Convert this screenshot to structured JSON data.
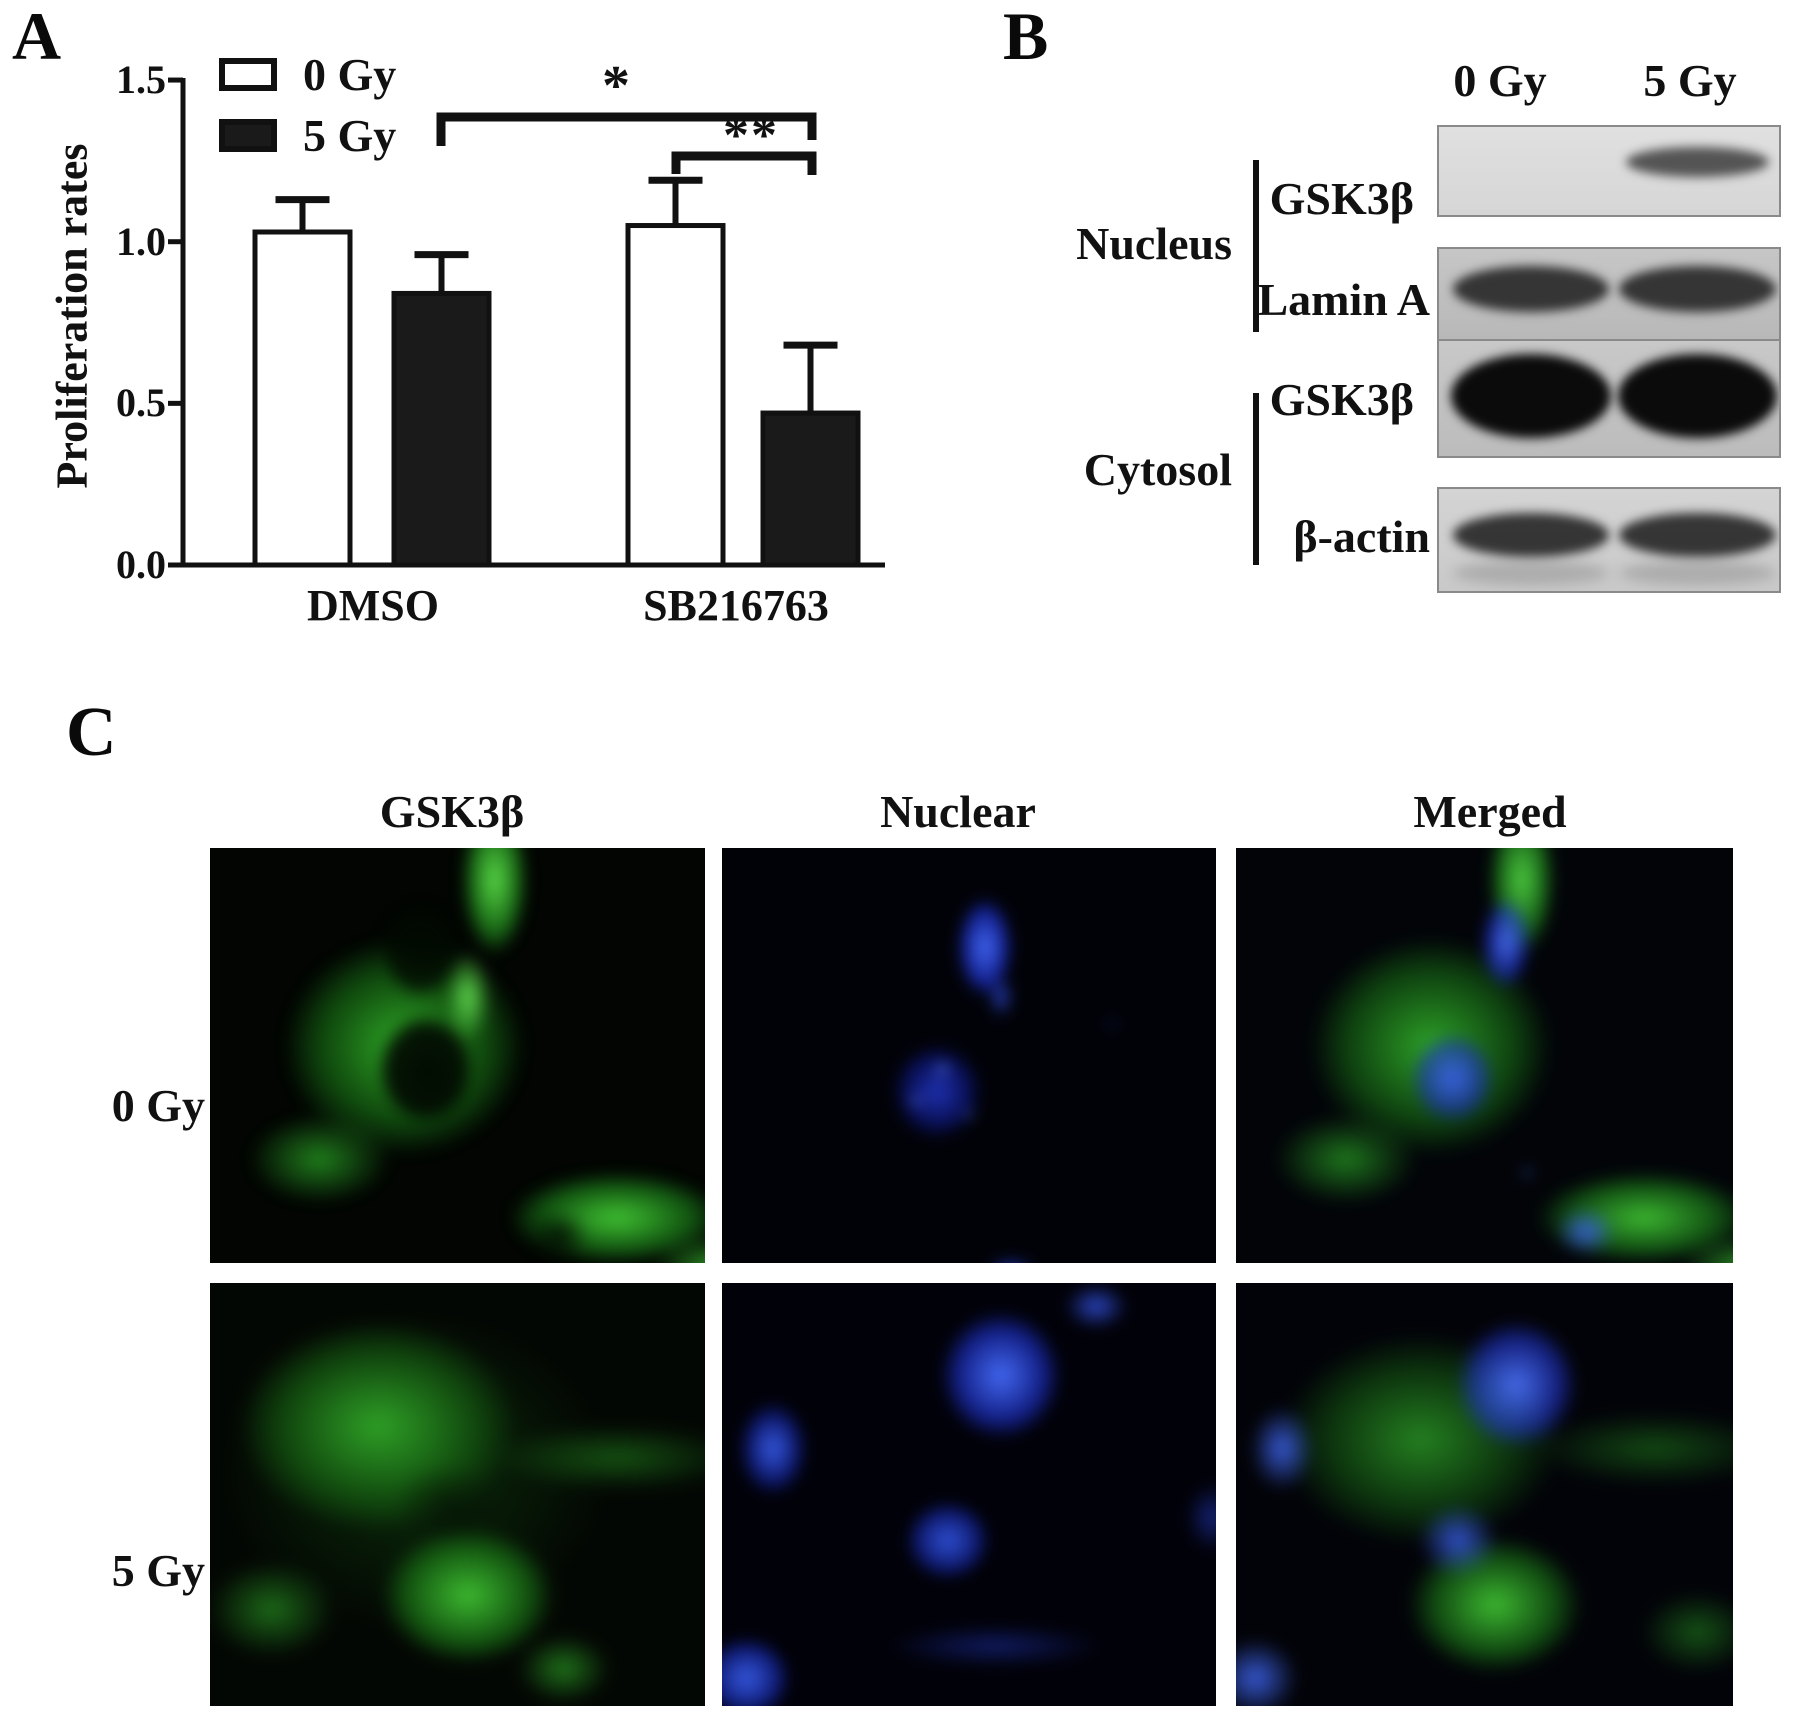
{
  "panel_labels": {
    "a": "A",
    "b": "B",
    "c": "C"
  },
  "chart_data": {
    "type": "bar",
    "title": "",
    "xlabel": "",
    "ylabel": "Proliferation rates",
    "categories": [
      "DMSO",
      "SB216763"
    ],
    "series": [
      {
        "name": "0 Gy",
        "fill": "#ffffff",
        "values": [
          1.03,
          1.05
        ],
        "errors": [
          0.1,
          0.14
        ]
      },
      {
        "name": "5 Gy",
        "fill": "#1a1a1a",
        "values": [
          0.84,
          0.47
        ],
        "errors": [
          0.12,
          0.21
        ]
      }
    ],
    "ylim": [
      0,
      1.5
    ],
    "yticks": [
      "0.0",
      "0.5",
      "1.0",
      "1.5"
    ],
    "grid": false,
    "legend_position": "top-left",
    "significance": [
      {
        "label": "*",
        "between": [
          "DMSO : 5 Gy",
          "SB216763 : 5 Gy"
        ]
      },
      {
        "label": "**",
        "between": [
          "SB216763 : 0 Gy",
          "SB216763 : 5 Gy"
        ]
      }
    ]
  },
  "panel_b": {
    "lane_headers": [
      "0 Gy",
      "5 Gy"
    ],
    "groups": [
      {
        "name": "Nucleus",
        "blots": [
          {
            "protein": "GSK3β",
            "lanes": [
              "absent",
              "present"
            ]
          },
          {
            "protein": "Lamin A",
            "lanes": [
              "present",
              "present"
            ]
          }
        ]
      },
      {
        "name": "Cytosol",
        "blots": [
          {
            "protein": "GSK3β",
            "lanes": [
              "strong",
              "strong"
            ]
          },
          {
            "protein": "β-actin",
            "lanes": [
              "present",
              "present"
            ]
          }
        ]
      }
    ]
  },
  "panel_c": {
    "column_headers": [
      "GSK3β",
      "Nuclear",
      "Merged"
    ],
    "row_headers": [
      "0 Gy",
      "5 Gy"
    ],
    "channel_colors": {
      "gsk3b": "#25c832",
      "nuclear": "#2b3cff"
    }
  }
}
